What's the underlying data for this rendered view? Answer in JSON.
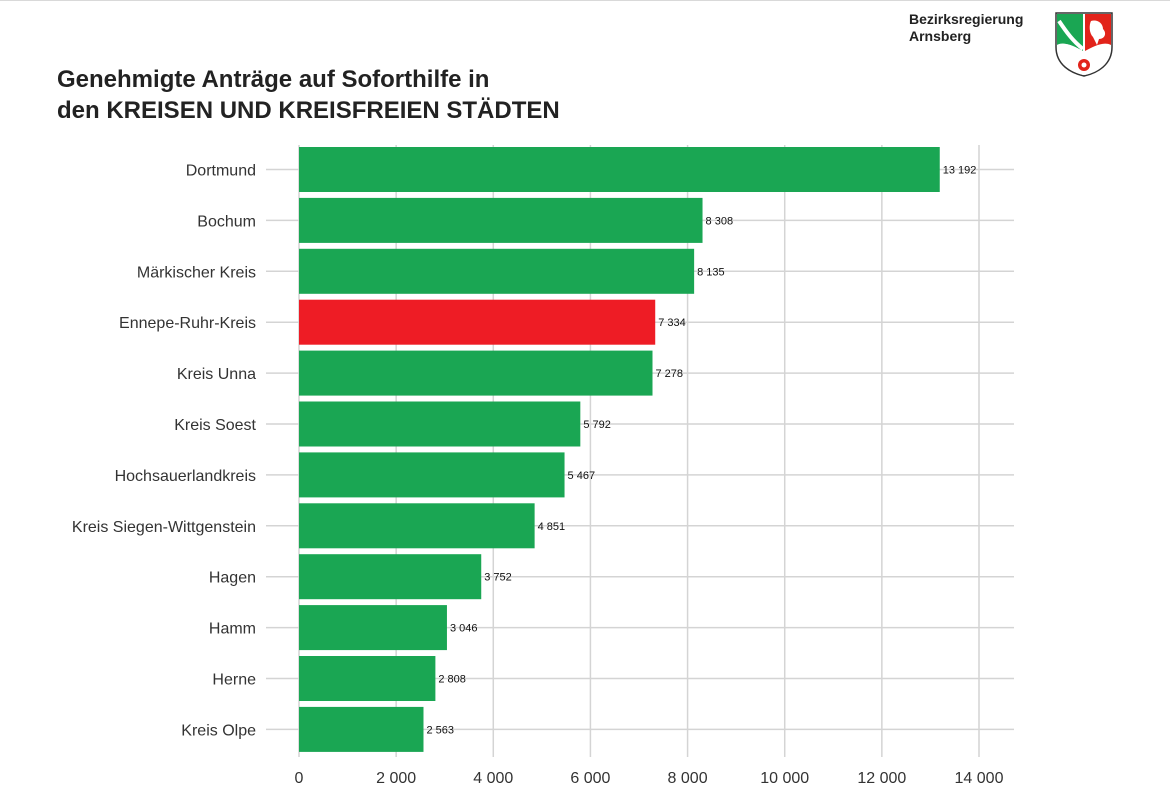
{
  "header": {
    "title_line1": "Genehmigte Anträge auf Soforthilfe in",
    "title_line2_prefix": "den ",
    "title_line2_bold": "KREISEN UND KREISFREIEN STÄDTEN",
    "org_line1": "Bezirksregierung",
    "org_line2": "Arnsberg",
    "logo_icon": "nrw-coat-of-arms-icon"
  },
  "colors": {
    "bar_default": "#1aa653",
    "bar_highlight": "#ee1c25",
    "grid": "#d4d4d4"
  },
  "chart_data": {
    "type": "bar",
    "orientation": "horizontal",
    "categories": [
      "Dortmund",
      "Bochum",
      "Märkischer Kreis",
      "Ennepe-Ruhr-Kreis",
      "Kreis Unna",
      "Kreis Soest",
      "Hochsauerlandkreis",
      "Kreis Siegen-Wittgenstein",
      "Hagen",
      "Hamm",
      "Herne",
      "Kreis Olpe"
    ],
    "values": [
      13192,
      8308,
      8135,
      7334,
      7278,
      5792,
      5467,
      4851,
      3752,
      3046,
      2808,
      2563
    ],
    "value_labels": [
      "13 192",
      "8 308",
      "8 135",
      "7 334",
      "7 278",
      "5 792",
      "5 467",
      "4 851",
      "3 752",
      "3 046",
      "2 808",
      "2 563"
    ],
    "highlight_index": 3,
    "title": "Genehmigte Anträge auf Soforthilfe in den KREISEN UND KREISFREIEN STÄDTEN",
    "xlabel": "",
    "ylabel": "",
    "xlim": [
      0,
      14000
    ],
    "xticks": [
      0,
      2000,
      4000,
      6000,
      8000,
      10000,
      12000,
      14000
    ],
    "xtick_labels": [
      "0",
      "2 000",
      "4 000",
      "6 000",
      "8 000",
      "10 000",
      "12 000",
      "14 000"
    ],
    "grid": true,
    "legend": "none"
  }
}
